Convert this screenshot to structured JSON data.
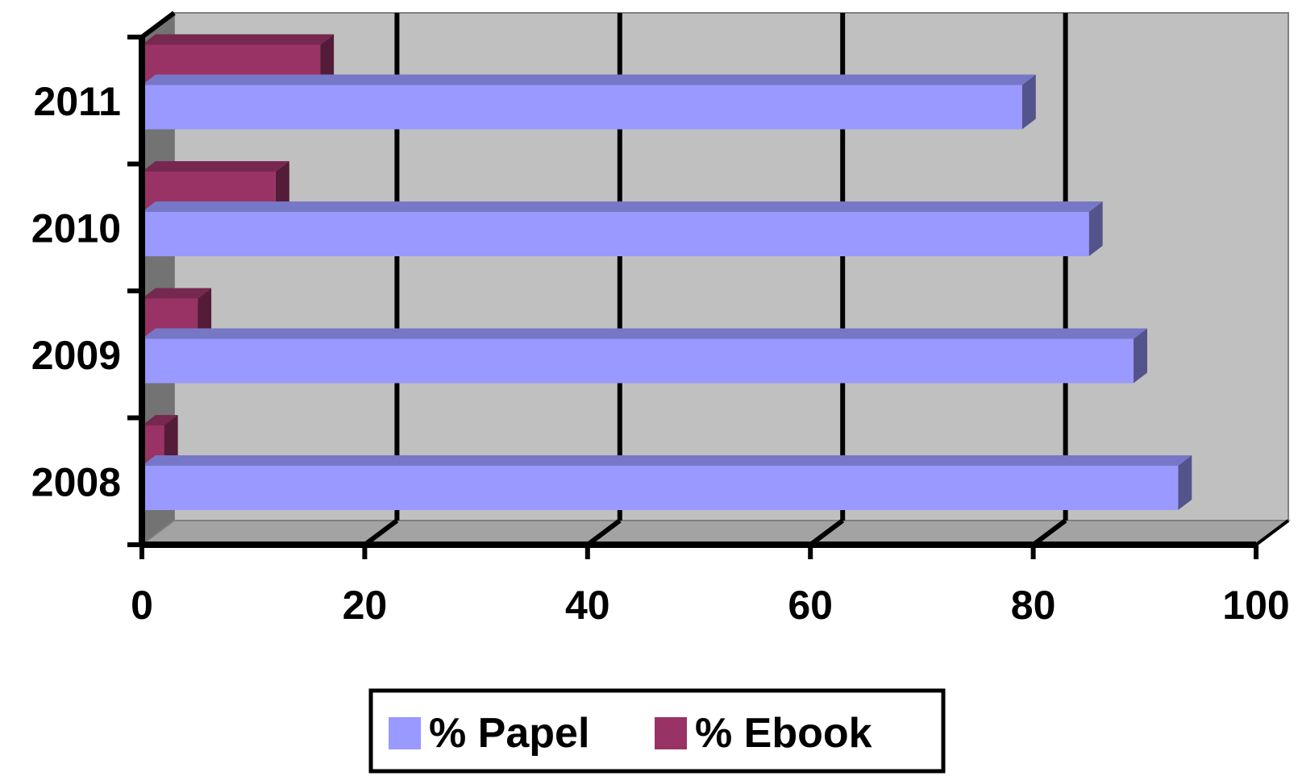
{
  "chart_data": {
    "type": "bar",
    "orientation": "horizontal",
    "categories": [
      "2008",
      "2009",
      "2010",
      "2011"
    ],
    "series": [
      {
        "name": "% Papel",
        "values": [
          93,
          89,
          85,
          79
        ],
        "color": "#9999ff"
      },
      {
        "name": "% Ebook",
        "values": [
          2,
          5,
          12,
          16
        ],
        "color": "#993366"
      }
    ],
    "title": "",
    "xlabel": "",
    "ylabel": "",
    "xlim": [
      0,
      100
    ],
    "x_ticks": [
      "0",
      "20",
      "40",
      "60",
      "80",
      "100"
    ],
    "grid": true,
    "three_d": true,
    "legend_position": "bottom",
    "colors": {
      "plot_wall": "#c0c0c0",
      "plot_floor": "#c0c0c0",
      "gridline": "#000000",
      "axis": "#000000"
    }
  }
}
